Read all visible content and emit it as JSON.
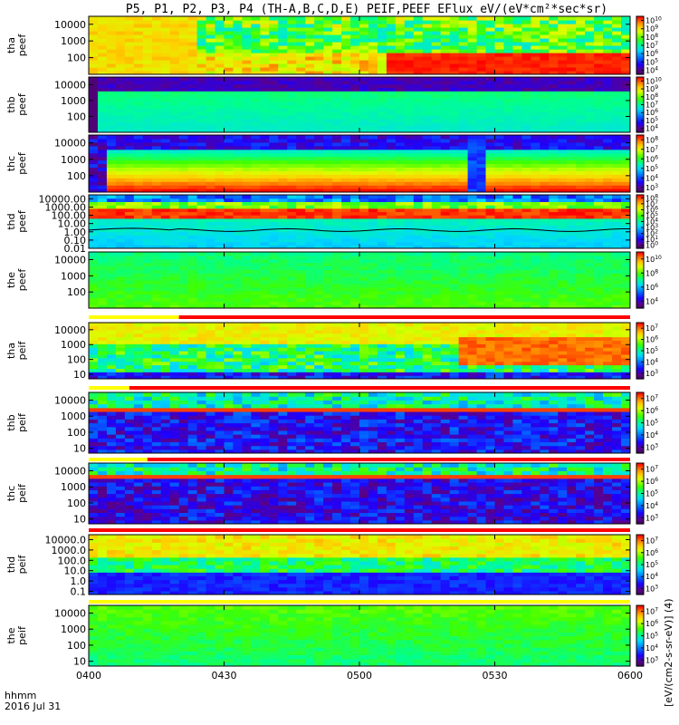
{
  "title": "P5, P1, P2, P3, P4 (TH-A,B,C,D,E) PEIF,PEEF EFlux eV/(eV*cm²*sec*sr)",
  "time_axis": {
    "label_line1": "hhmm",
    "label_line2": "2016 Jul 31",
    "ticks": [
      "0400",
      "0430",
      "0500",
      "0530",
      "0600"
    ],
    "range_minutes": [
      0,
      120
    ]
  },
  "colorbar_label": "[eV/(cm2-s-sr-eV)] (4)",
  "colors": {
    "bar_red": "#ff0000",
    "bar_yellow": "#ffff00"
  },
  "chart_data": [
    {
      "type": "heatmap",
      "id": "tha_peef",
      "ylabel": [
        "tha",
        "peef"
      ],
      "yticks": [
        "10000",
        "1000",
        "100"
      ],
      "ytick_values": [
        10000,
        1000,
        100
      ],
      "ylim": [
        10,
        30000
      ],
      "cbar_ticks": [
        "10^10",
        "10^9",
        "10^8",
        "10^7",
        "10^6",
        "10^5",
        "10^4"
      ],
      "cbar_values": [
        10,
        9,
        8,
        7,
        6,
        5,
        4
      ],
      "cbar_range": [
        3.5,
        10.5
      ],
      "scheme": "tha_e"
    },
    {
      "type": "heatmap",
      "id": "thb_peef",
      "ylabel": [
        "thb",
        "peef"
      ],
      "yticks": [
        "10000",
        "1000",
        "100"
      ],
      "ytick_values": [
        10000,
        1000,
        100
      ],
      "ylim": [
        10,
        30000
      ],
      "cbar_ticks": [
        "10^10",
        "10^9",
        "10^8",
        "10^7",
        "10^6",
        "10^5",
        "10^4"
      ],
      "cbar_values": [
        10,
        9,
        8,
        7,
        6,
        5,
        4
      ],
      "cbar_range": [
        3.5,
        10.5
      ],
      "scheme": "thb_e"
    },
    {
      "type": "heatmap",
      "id": "thc_peef",
      "ylabel": [
        "thc",
        "peef"
      ],
      "yticks": [
        "10000",
        "1000",
        "100"
      ],
      "ytick_values": [
        10000,
        1000,
        100
      ],
      "ylim": [
        10,
        30000
      ],
      "cbar_ticks": [
        "10^8",
        "10^7",
        "10^6",
        "10^5",
        "10^4",
        "10^3"
      ],
      "cbar_values": [
        8,
        7,
        6,
        5,
        4,
        3
      ],
      "cbar_range": [
        2.5,
        8.5
      ],
      "scheme": "thc_e"
    },
    {
      "type": "heatmap",
      "id": "thd_peef",
      "ylabel": [
        "thd",
        "peef"
      ],
      "yticks": [
        "10000.00",
        "1000.00",
        "100.00",
        "10.00",
        "1.00",
        "0.10",
        "0.01"
      ],
      "ytick_values": [
        10000,
        1000,
        100,
        10,
        1,
        0.1,
        0.01
      ],
      "ylim": [
        0.01,
        30000
      ],
      "cbar_ticks": [
        "10^8",
        "10^7",
        "10^6",
        "10^5",
        "10^4",
        "10^3",
        "10^2",
        "10^1",
        "10^0"
      ],
      "cbar_values": [
        8,
        7,
        6,
        5,
        4,
        3,
        2,
        1,
        0
      ],
      "cbar_range": [
        -0.5,
        8.5
      ],
      "scheme": "thd_e"
    },
    {
      "type": "heatmap",
      "id": "the_peef",
      "ylabel": [
        "the",
        "peef"
      ],
      "yticks": [
        "10000",
        "1000",
        "100"
      ],
      "ytick_values": [
        10000,
        1000,
        100
      ],
      "ylim": [
        10,
        30000
      ],
      "cbar_ticks": [
        "10^10",
        "10^8",
        "10^6",
        "10^4"
      ],
      "cbar_values": [
        10,
        8,
        6,
        4
      ],
      "cbar_range": [
        3,
        11
      ],
      "scheme": "the_e"
    },
    {
      "type": "heatmap",
      "id": "tha_peif",
      "ylabel": [
        "tha",
        "peif"
      ],
      "yticks": [
        "10000",
        "1000",
        "100",
        "10"
      ],
      "ytick_values": [
        10000,
        1000,
        100,
        10
      ],
      "ylim": [
        5,
        30000
      ],
      "cbar_ticks": [
        "10^7",
        "10^6",
        "10^5",
        "10^4",
        "10^3"
      ],
      "cbar_values": [
        7,
        6,
        5,
        4,
        3
      ],
      "cbar_range": [
        2.5,
        7.5
      ],
      "scheme": "tha_i"
    },
    {
      "type": "heatmap",
      "id": "thb_peif",
      "ylabel": [
        "thb",
        "peif"
      ],
      "yticks": [
        "10000",
        "1000",
        "100",
        "10"
      ],
      "ytick_values": [
        10000,
        1000,
        100,
        10
      ],
      "ylim": [
        5,
        30000
      ],
      "cbar_ticks": [
        "10^7",
        "10^6",
        "10^5",
        "10^4",
        "10^3"
      ],
      "cbar_values": [
        7,
        6,
        5,
        4,
        3
      ],
      "cbar_range": [
        2.5,
        7.5
      ],
      "scheme": "thb_i"
    },
    {
      "type": "heatmap",
      "id": "thc_peif",
      "ylabel": [
        "thc",
        "peif"
      ],
      "yticks": [
        "10000",
        "1000",
        "100",
        "10"
      ],
      "ytick_values": [
        10000,
        1000,
        100,
        10
      ],
      "ylim": [
        5,
        30000
      ],
      "cbar_ticks": [
        "10^7",
        "10^6",
        "10^5",
        "10^4",
        "10^3"
      ],
      "cbar_values": [
        7,
        6,
        5,
        4,
        3
      ],
      "cbar_range": [
        2.5,
        7.5
      ],
      "scheme": "thc_i"
    },
    {
      "type": "heatmap",
      "id": "thd_peif",
      "ylabel": [
        "thd",
        "peif"
      ],
      "yticks": [
        "10000.0",
        "1000.0",
        "100.0",
        "10.0",
        "1.0",
        "0.1"
      ],
      "ytick_values": [
        10000,
        1000,
        100,
        10,
        1,
        0.1
      ],
      "ylim": [
        0.05,
        30000
      ],
      "cbar_ticks": [
        "10^7",
        "10^6",
        "10^5",
        "10^4",
        "10^3"
      ],
      "cbar_values": [
        7,
        6,
        5,
        4,
        3
      ],
      "cbar_range": [
        2.5,
        7.5
      ],
      "scheme": "thd_i"
    },
    {
      "type": "heatmap",
      "id": "the_peif",
      "ylabel": [
        "the",
        "peif"
      ],
      "yticks": [
        "10000",
        "1000",
        "100",
        "10"
      ],
      "ytick_values": [
        10000,
        1000,
        100,
        10
      ],
      "ylim": [
        5,
        30000
      ],
      "cbar_ticks": [
        "10^7",
        "10^6",
        "10^5",
        "10^4",
        "10^3"
      ],
      "cbar_values": [
        7,
        6,
        5,
        4,
        3
      ],
      "cbar_range": [
        2.5,
        7.5
      ],
      "scheme": "the_i"
    }
  ],
  "status_bars": [
    {
      "id": "bar_the_peef",
      "segments": [
        {
          "from": 0,
          "to": 20,
          "color": "yellow"
        },
        {
          "from": 20,
          "to": 120,
          "color": "red"
        }
      ]
    },
    {
      "id": "bar_tha_peif",
      "segments": [
        {
          "from": 0,
          "to": 9,
          "color": "yellow"
        },
        {
          "from": 9,
          "to": 120,
          "color": "red"
        }
      ]
    },
    {
      "id": "bar_thb_peif",
      "segments": [
        {
          "from": 0,
          "to": 13,
          "color": "yellow"
        },
        {
          "from": 13,
          "to": 120,
          "color": "red"
        }
      ]
    },
    {
      "id": "bar_thc_peif",
      "segments": [
        {
          "from": 0,
          "to": 120,
          "color": "red"
        }
      ]
    },
    {
      "id": "bar_thd_peif",
      "segments": [
        {
          "from": 0,
          "to": 120,
          "color": "yellow"
        }
      ]
    }
  ]
}
